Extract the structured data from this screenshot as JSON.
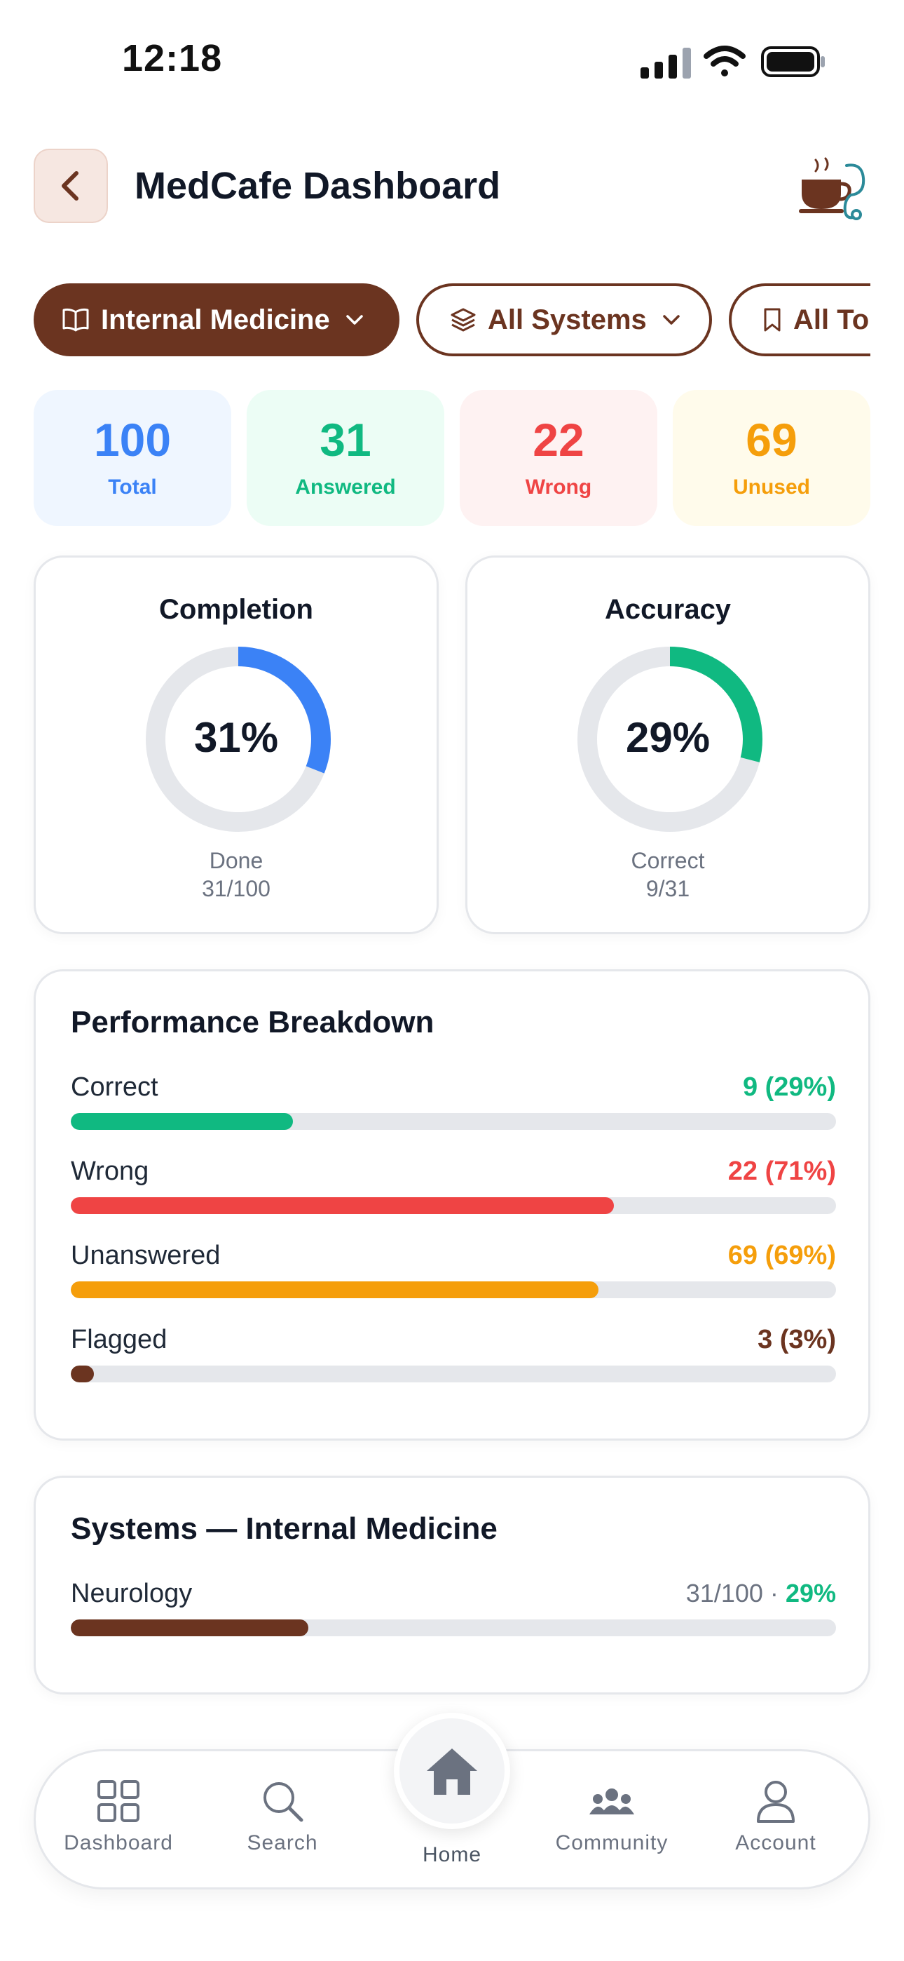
{
  "status_bar": {
    "time": "12:18"
  },
  "header": {
    "title": "MedCafe Dashboard",
    "logo_icon": "coffee-stethoscope-icon"
  },
  "filters": {
    "subject": "Internal Medicine",
    "systems": "All Systems",
    "topics": "All Topics"
  },
  "stats": [
    {
      "value": "100",
      "label": "Total",
      "color": "#3b82f6",
      "bg": "#eff6ff"
    },
    {
      "value": "31",
      "label": "Answered",
      "color": "#10b981",
      "bg": "#ecfdf5"
    },
    {
      "value": "22",
      "label": "Wrong",
      "color": "#ef4444",
      "bg": "#fef2f2"
    },
    {
      "value": "69",
      "label": "Unused",
      "color": "#f59e0b",
      "bg": "#fffbeb"
    }
  ],
  "completion": {
    "title": "Completion",
    "value": "31%",
    "fraction": 0.31,
    "sub_label": "Done",
    "sub_value": "31/100",
    "color": "#3b82f6"
  },
  "accuracy": {
    "title": "Accuracy",
    "value": "29%",
    "fraction": 0.29,
    "sub_label": "Correct",
    "sub_value": "9/31",
    "color": "#10b981"
  },
  "performance": {
    "title": "Performance Breakdown",
    "rows": [
      {
        "label": "Correct",
        "value": "9 (29%)",
        "fraction": 0.29,
        "color": "#10b981"
      },
      {
        "label": "Wrong",
        "value": "22 (71%)",
        "fraction": 0.71,
        "color": "#ef4444"
      },
      {
        "label": "Unanswered",
        "value": "69 (69%)",
        "fraction": 0.69,
        "color": "#f59e0b"
      },
      {
        "label": "Flagged",
        "value": "3 (3%)",
        "fraction": 0.03,
        "color": "#6b3420"
      }
    ]
  },
  "systems": {
    "title": "Systems — Internal Medicine",
    "rows": [
      {
        "label": "Neurology",
        "count": "31/100",
        "separator": "·",
        "percent": "29%",
        "fraction": 0.31,
        "color": "#6b3420"
      }
    ]
  },
  "nav": {
    "dashboard": "Dashboard",
    "search": "Search",
    "home": "Home",
    "community": "Community",
    "account": "Account"
  },
  "colors": {
    "brand": "#6b3420",
    "track": "#e5e7eb"
  }
}
